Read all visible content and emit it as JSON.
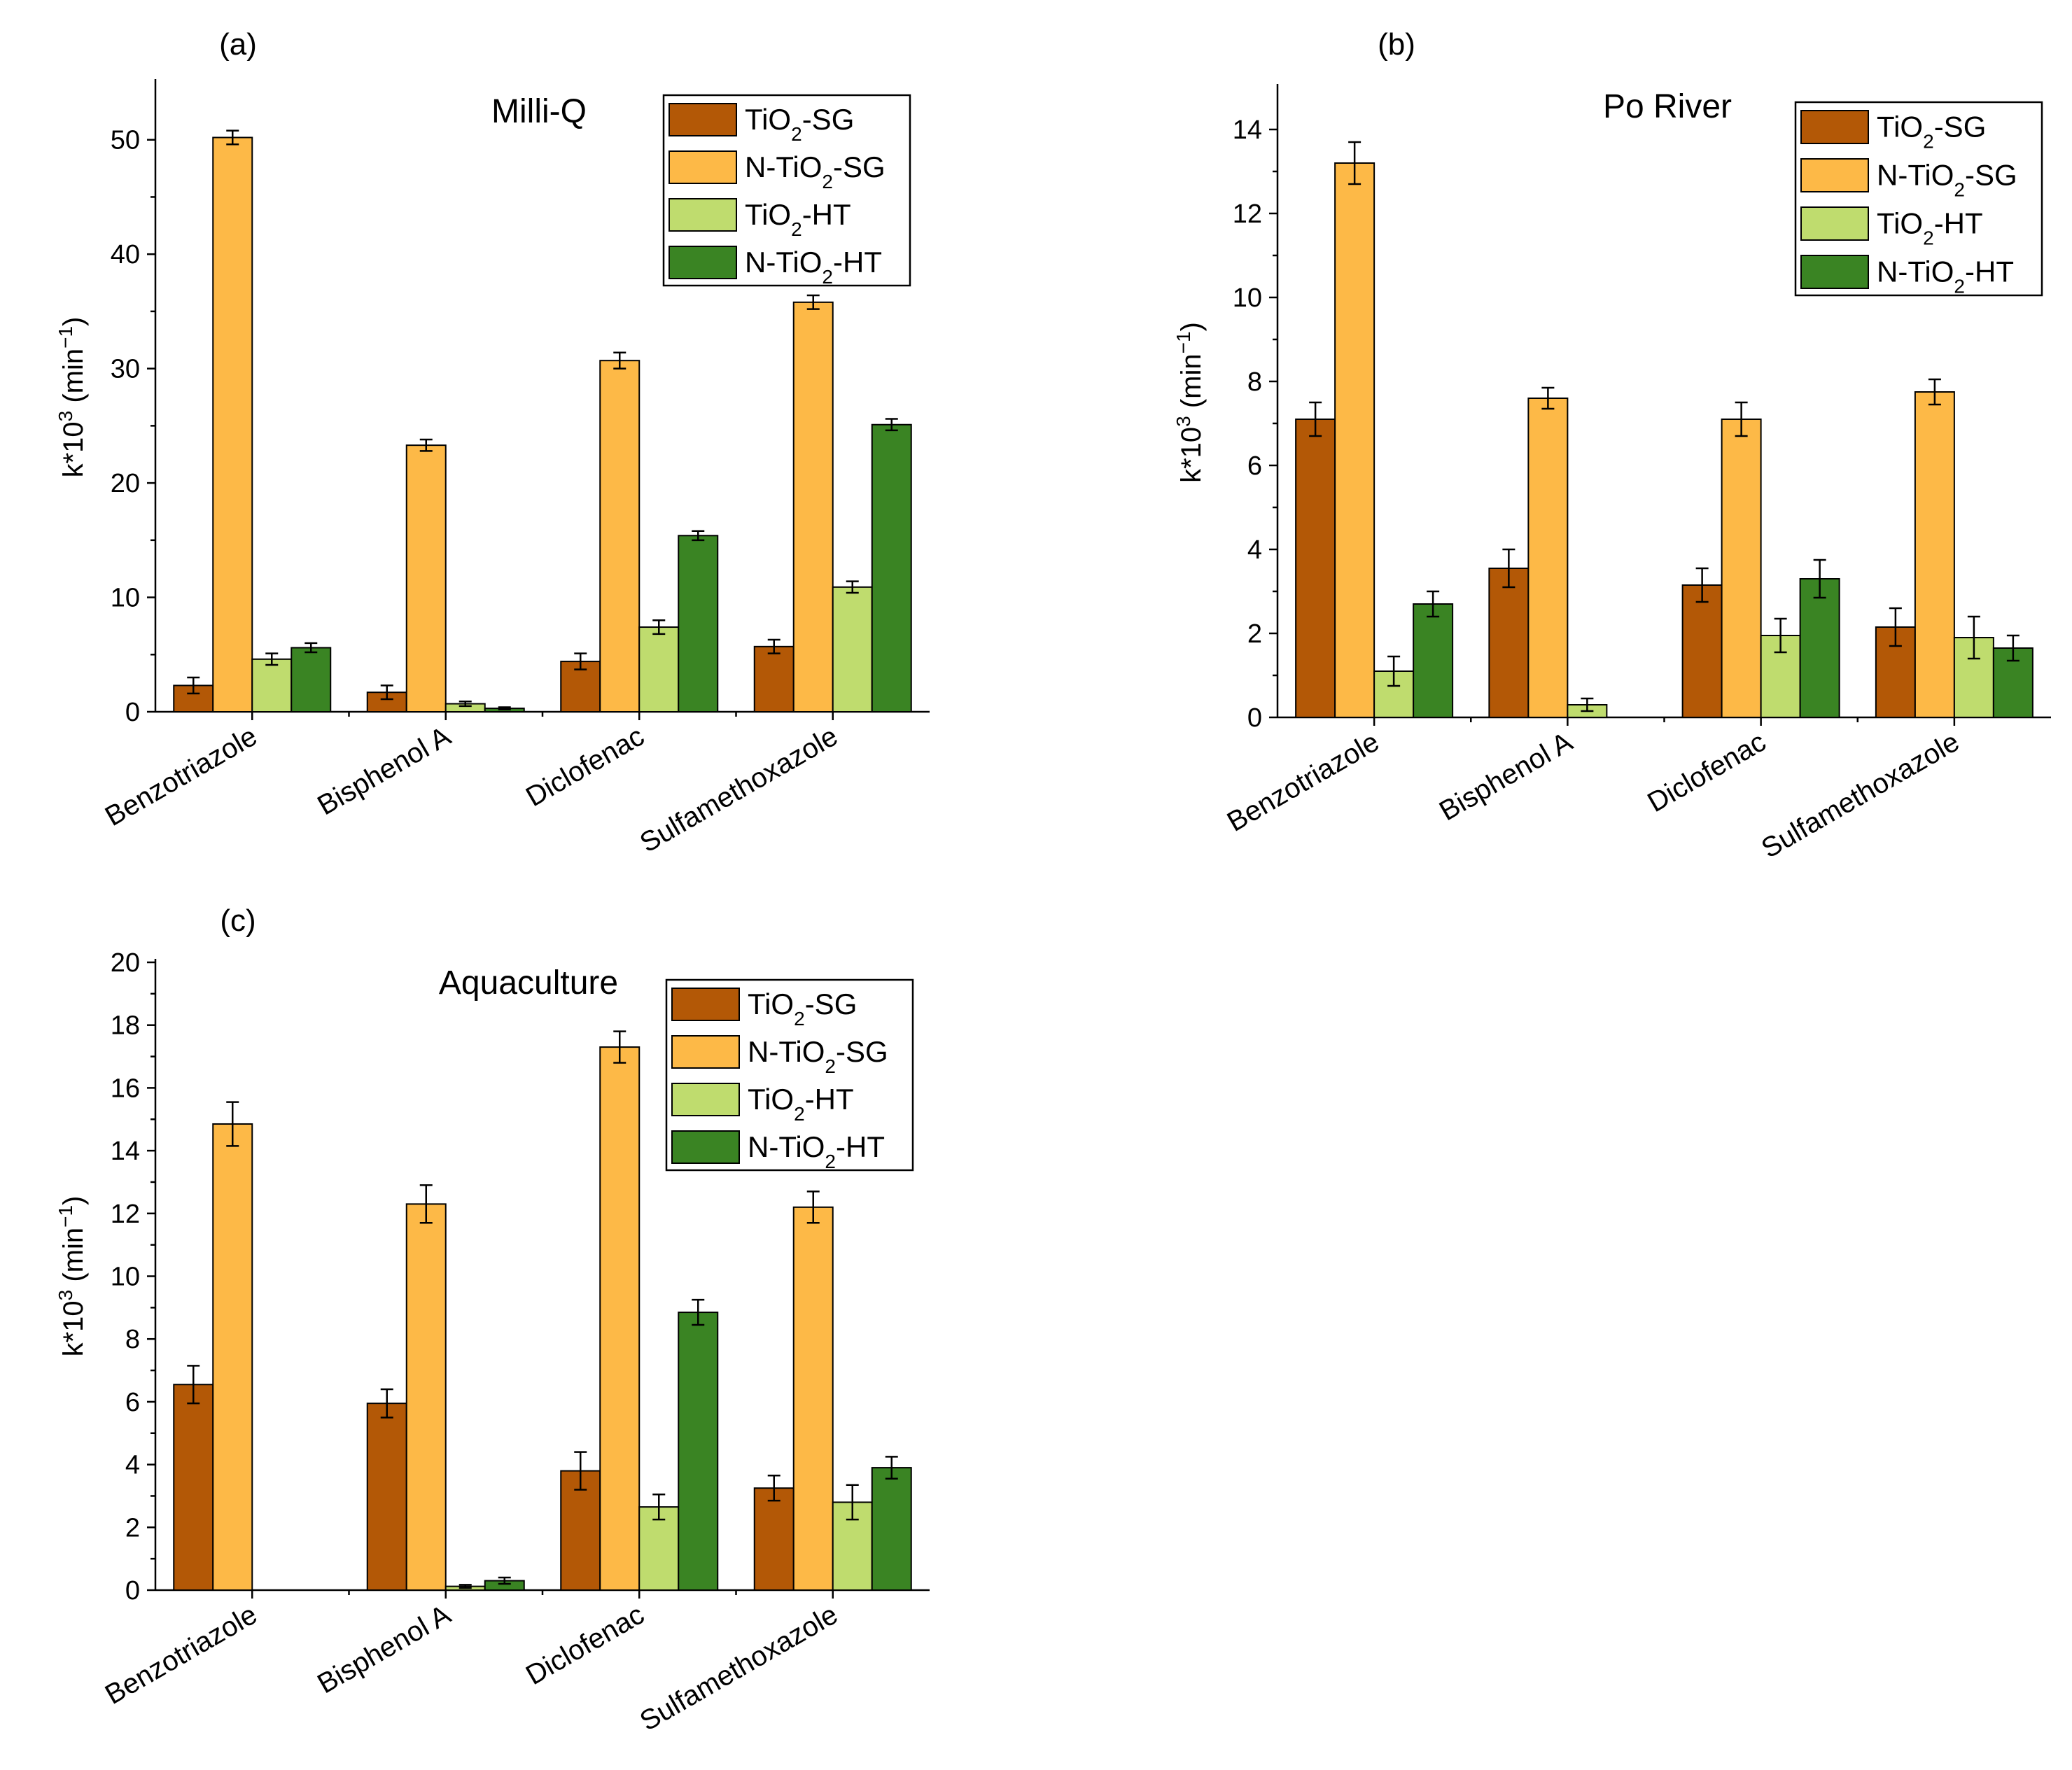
{
  "colors": {
    "TiO2-SG": "#b35806",
    "N-TiO2-SG": "#fdb947",
    "TiO2-HT": "#bfdc6e",
    "N-TiO2-HT": "#3a8423"
  },
  "chart_data": [
    {
      "type": "bar",
      "panel": "(a)",
      "title": "Milli-Q",
      "ylabel": "k*10³ (min⁻¹)",
      "ylim": [
        0,
        55
      ],
      "yticks": [
        0,
        10,
        20,
        30,
        40,
        50
      ],
      "categories": [
        "Benzotriazole",
        "Bisphenol A",
        "Diclofenac",
        "Sulfamethoxazole"
      ],
      "legend_position": "top-right",
      "series": [
        {
          "name": "TiO2-SG",
          "values": [
            2.3,
            1.7,
            4.4,
            5.7
          ],
          "errors": [
            0.7,
            0.6,
            0.7,
            0.6
          ]
        },
        {
          "name": "N-TiO2-SG",
          "values": [
            50.2,
            23.3,
            30.7,
            35.8
          ],
          "errors": [
            0.6,
            0.5,
            0.7,
            0.6
          ]
        },
        {
          "name": "TiO2-HT",
          "values": [
            4.6,
            0.7,
            7.4,
            10.9
          ],
          "errors": [
            0.5,
            0.2,
            0.6,
            0.5
          ]
        },
        {
          "name": "N-TiO2-HT",
          "values": [
            5.6,
            0.3,
            15.4,
            25.1
          ],
          "errors": [
            0.4,
            0.1,
            0.4,
            0.5
          ]
        }
      ]
    },
    {
      "type": "bar",
      "panel": "(b)",
      "title": "Po River",
      "ylabel": "k*10³ (min⁻¹)",
      "ylim": [
        0,
        15
      ],
      "yticks": [
        0,
        2,
        4,
        6,
        8,
        10,
        12,
        14
      ],
      "categories": [
        "Benzotriazole",
        "Bisphenol A",
        "Diclofenac",
        "Sulfamethoxazole"
      ],
      "legend_position": "top-right",
      "series": [
        {
          "name": "TiO2-SG",
          "values": [
            7.1,
            3.55,
            3.15,
            2.15
          ],
          "errors": [
            0.4,
            0.45,
            0.4,
            0.45
          ]
        },
        {
          "name": "N-TiO2-SG",
          "values": [
            13.2,
            7.6,
            7.1,
            7.75
          ],
          "errors": [
            0.5,
            0.25,
            0.4,
            0.3
          ]
        },
        {
          "name": "TiO2-HT",
          "values": [
            1.1,
            0.3,
            1.95,
            1.9
          ],
          "errors": [
            0.35,
            0.15,
            0.4,
            0.5
          ]
        },
        {
          "name": "N-TiO2-HT",
          "values": [
            2.7,
            0,
            3.3,
            1.65
          ],
          "errors": [
            0.3,
            0,
            0.45,
            0.3
          ]
        }
      ]
    },
    {
      "type": "bar",
      "panel": "(c)",
      "title": "Aquaculture",
      "ylabel": "k*10³ (min⁻¹)",
      "ylim": [
        0,
        20
      ],
      "yticks": [
        0,
        2,
        4,
        6,
        8,
        10,
        12,
        14,
        16,
        18,
        20
      ],
      "categories": [
        "Benzotriazole",
        "Bisphenol A",
        "Diclofenac",
        "Sulfamethoxazole"
      ],
      "legend_position": "top-right",
      "series": [
        {
          "name": "TiO2-SG",
          "values": [
            6.55,
            5.95,
            3.8,
            3.25
          ],
          "errors": [
            0.6,
            0.45,
            0.6,
            0.4
          ]
        },
        {
          "name": "N-TiO2-SG",
          "values": [
            14.85,
            12.3,
            17.3,
            12.2
          ],
          "errors": [
            0.7,
            0.6,
            0.5,
            0.5
          ]
        },
        {
          "name": "TiO2-HT",
          "values": [
            0,
            0.12,
            2.65,
            2.8
          ],
          "errors": [
            0,
            0.05,
            0.4,
            0.55
          ]
        },
        {
          "name": "N-TiO2-HT",
          "values": [
            0,
            0.3,
            8.85,
            3.9
          ],
          "errors": [
            0,
            0.1,
            0.4,
            0.35
          ]
        }
      ]
    }
  ]
}
